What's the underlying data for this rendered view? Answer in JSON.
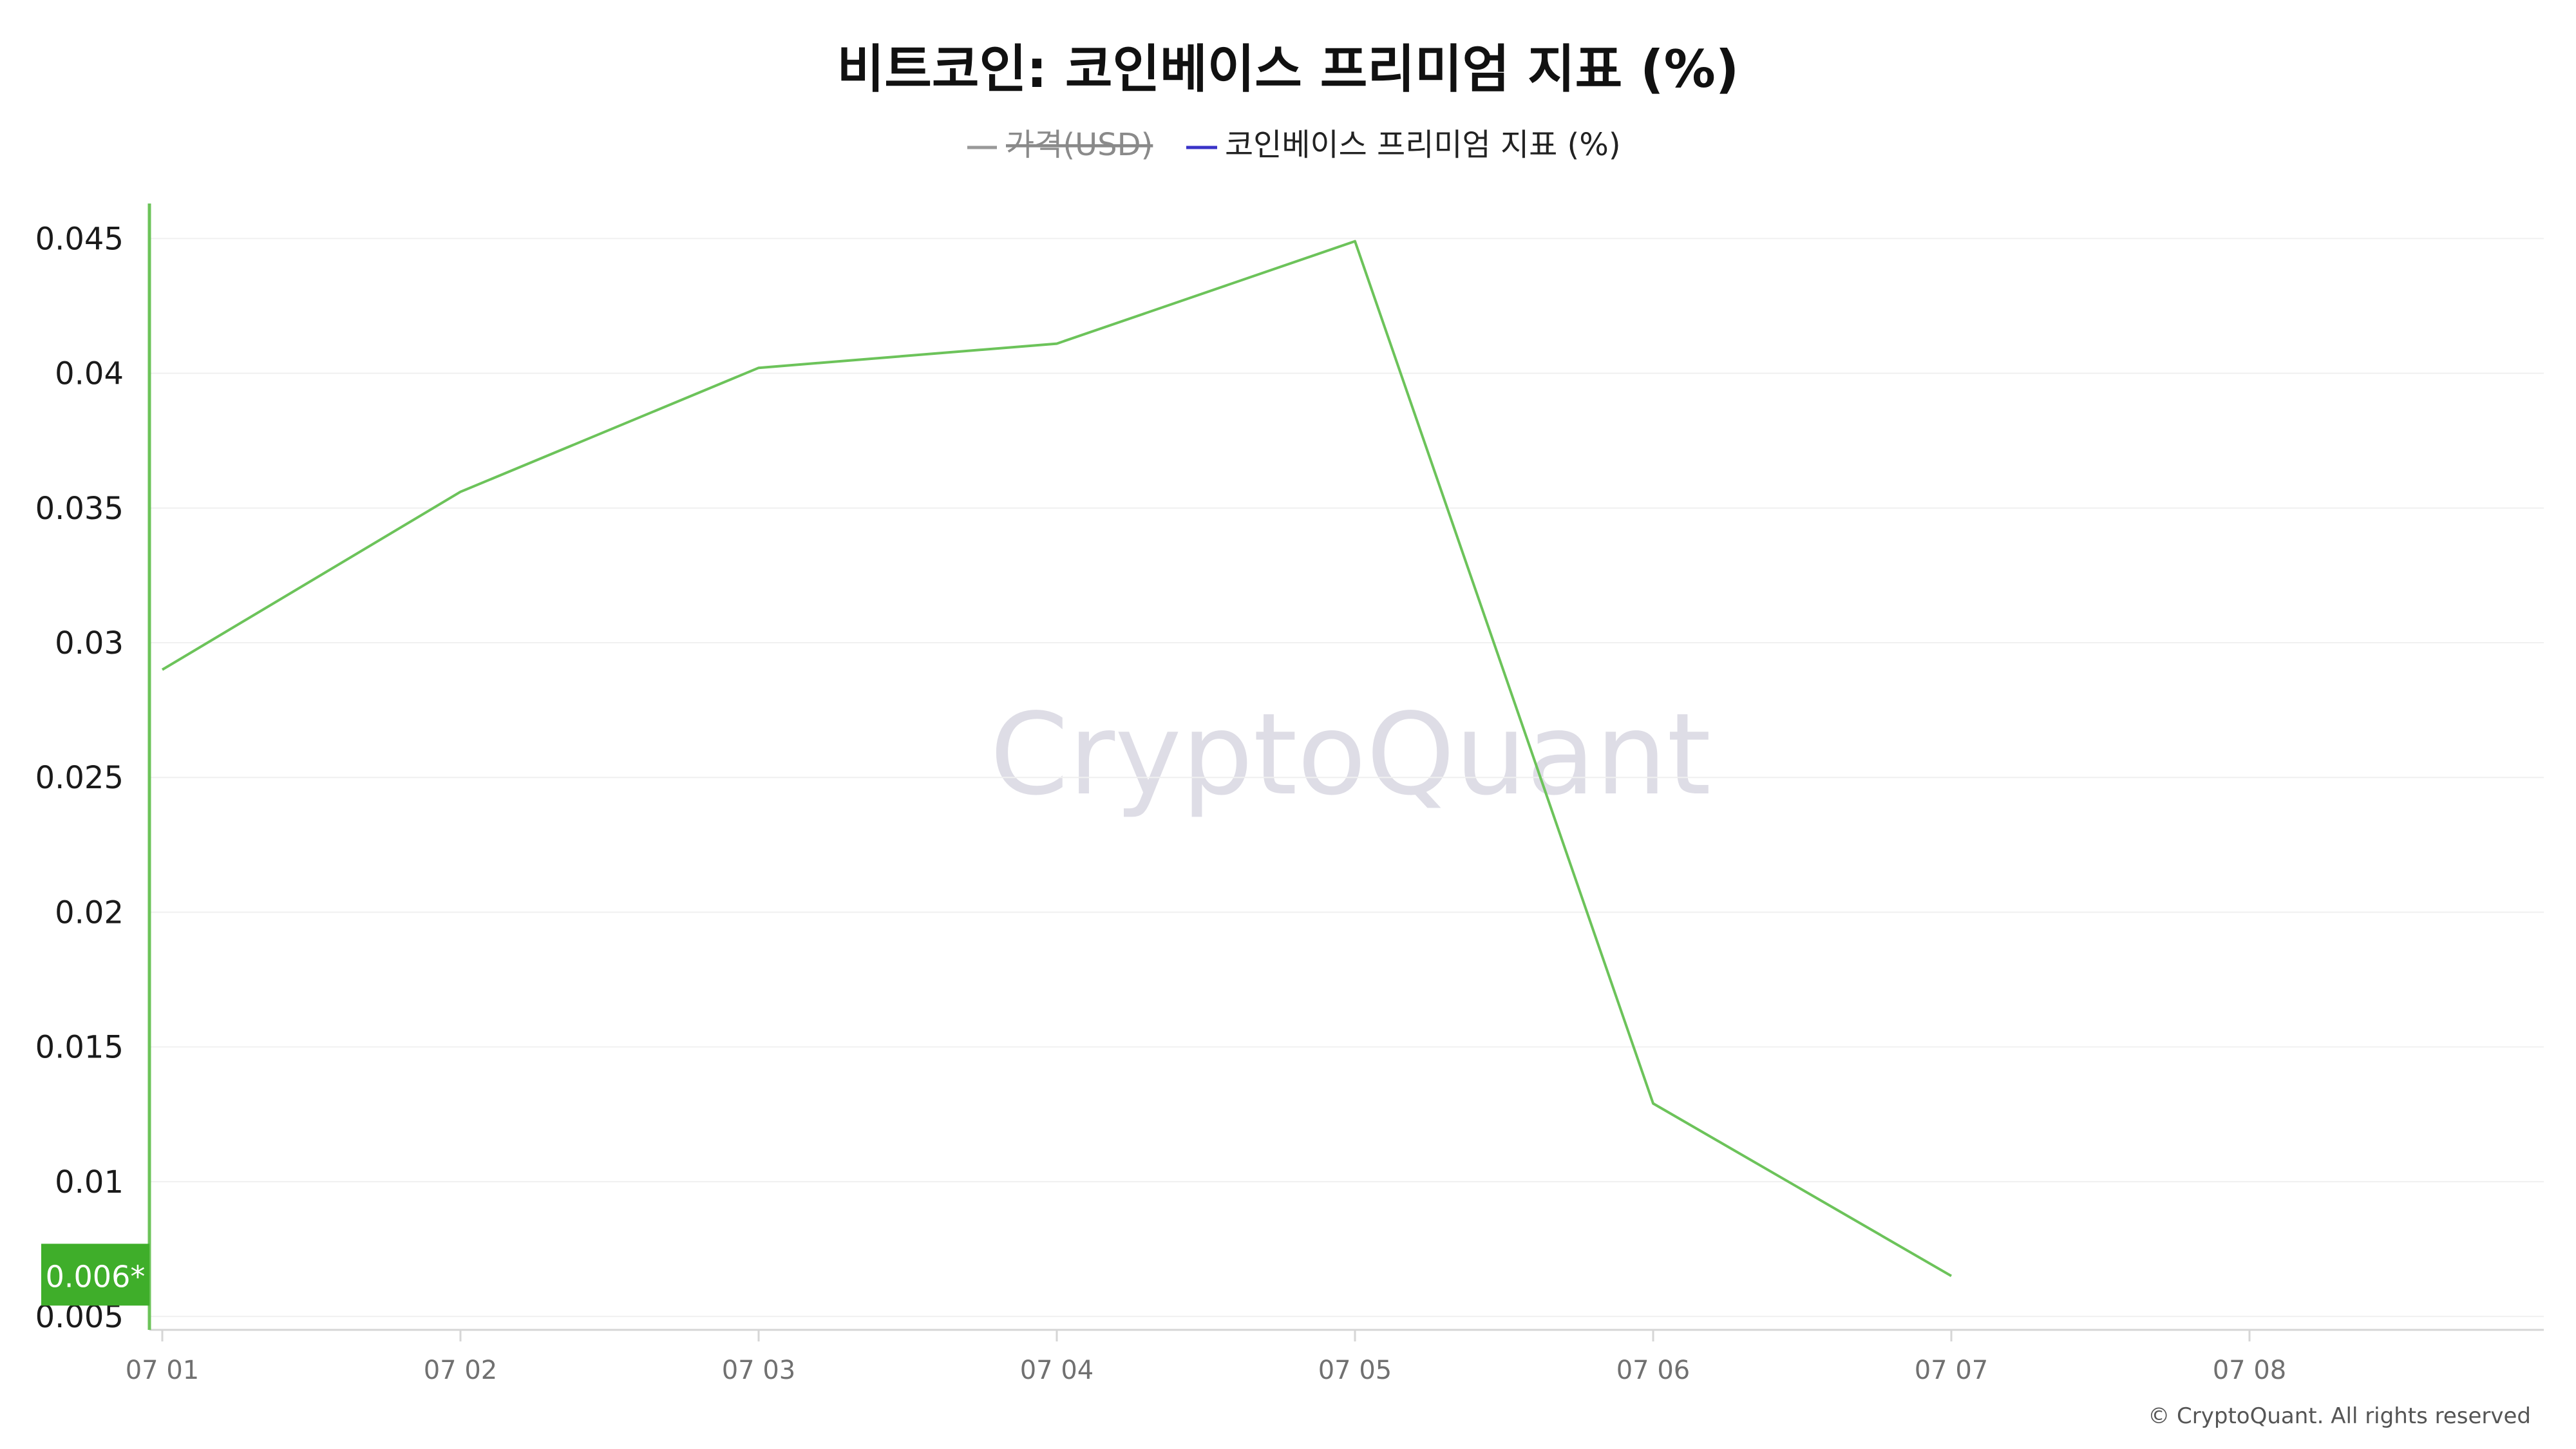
{
  "chart_data": {
    "type": "line",
    "title": "비트코인: 코인베이스 프리미엄 지표 (%)",
    "legend": [
      {
        "label": "가격(USD)",
        "color": "#999999",
        "disabled": true
      },
      {
        "label": "코인베이스 프리미엄 지표 (%)",
        "color": "#3a33c8",
        "disabled": false
      }
    ],
    "legend_position": "top-center",
    "x_ticks": [
      "07 01",
      "07 02",
      "07 03",
      "07 04",
      "07 05",
      "07 06",
      "07 07",
      "07 08"
    ],
    "y_ticks": [
      "0.005",
      "0.01",
      "0.015",
      "0.02",
      "0.025",
      "0.03",
      "0.035",
      "0.04",
      "0.045"
    ],
    "y_tick_values": [
      0.005,
      0.01,
      0.015,
      0.02,
      0.025,
      0.03,
      0.035,
      0.04,
      0.045
    ],
    "ylim": [
      0.0045,
      0.0463
    ],
    "grid": true,
    "series": [
      {
        "name": "코인베이스 프리미엄 지표 (%)",
        "color": "#6cc35a",
        "x": [
          "07 01",
          "07 02",
          "07 03",
          "07 04",
          "07 05",
          "07 06",
          "07 07"
        ],
        "values": [
          0.029,
          0.0356,
          0.0402,
          0.0411,
          0.0449,
          0.0129,
          0.0065
        ]
      }
    ],
    "current_value_label": "0.006*",
    "current_value_color": "#3fae2a",
    "watermark": "CryptoQuant",
    "copyright": "© CryptoQuant. All rights reserved"
  }
}
